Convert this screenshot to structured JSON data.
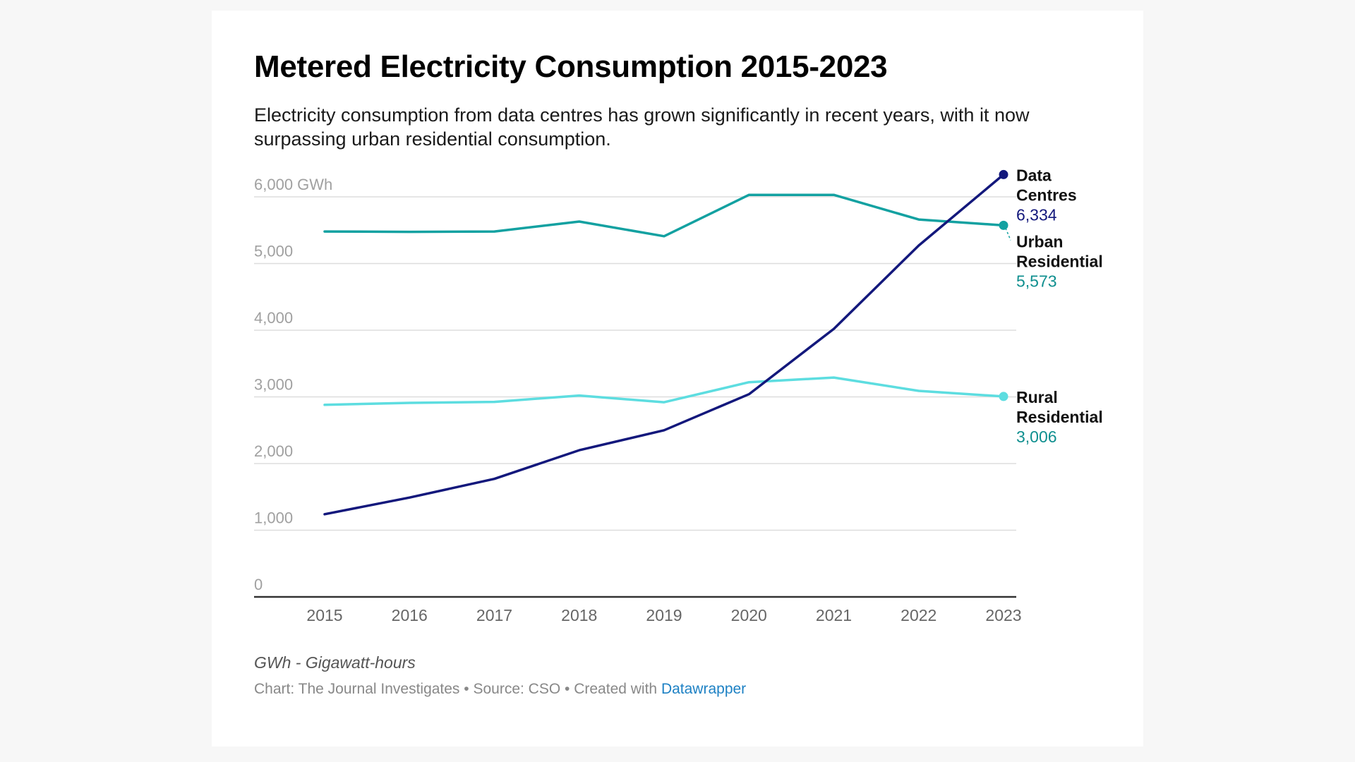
{
  "title": "Metered Electricity Consumption 2015-2023",
  "subtitle": "Electricity consumption from data centres has grown significantly in recent years, with it now surpassing urban residential consumption.",
  "notes": "GWh - Gigawatt-hours",
  "byline": {
    "chart_text": "Chart: The Journal Investigates",
    "sep1": " • ",
    "source_text": "Source: CSO",
    "sep2": " • ",
    "created_text": "Created with ",
    "created_link": "Datawrapper"
  },
  "chart_data": {
    "type": "line",
    "title": "Metered Electricity Consumption 2015-2023",
    "x": [
      2015,
      2016,
      2017,
      2018,
      2019,
      2020,
      2021,
      2022,
      2023
    ],
    "ylim": [
      0,
      6000
    ],
    "yticks": [
      0,
      1000,
      2000,
      3000,
      4000,
      5000,
      6000
    ],
    "ytick_labels": [
      "0",
      "1,000",
      "2,000",
      "3,000",
      "4,000",
      "5,000",
      "6,000 GWh"
    ],
    "grid": true,
    "series": [
      {
        "name": "Urban Residential",
        "label_lines": [
          "Urban",
          "Residential"
        ],
        "end_value_label": "5,573",
        "color": "#13a1a1",
        "label_color": "#0f8f8f",
        "values": [
          5480,
          5475,
          5480,
          5630,
          5410,
          6030,
          6030,
          5660,
          5573
        ]
      },
      {
        "name": "Rural Residential",
        "label_lines": [
          "Rural",
          "Residential"
        ],
        "end_value_label": "3,006",
        "color": "#5ddde0",
        "label_color": "#0f8f8f",
        "values": [
          2880,
          2910,
          2925,
          3020,
          2920,
          3220,
          3290,
          3090,
          3006
        ]
      },
      {
        "name": "Data Centres",
        "label_lines": [
          "Data",
          "Centres"
        ],
        "end_value_label": "6,334",
        "color": "#13187c",
        "label_color": "#13187c",
        "values": [
          1240,
          1490,
          1770,
          2200,
          2500,
          3040,
          4020,
          5270,
          6334
        ]
      }
    ]
  },
  "colors": {
    "gridline": "#dddddd",
    "baseline": "#333333",
    "tick_label": "#a0a0a0",
    "x_tick_label": "#666666"
  }
}
